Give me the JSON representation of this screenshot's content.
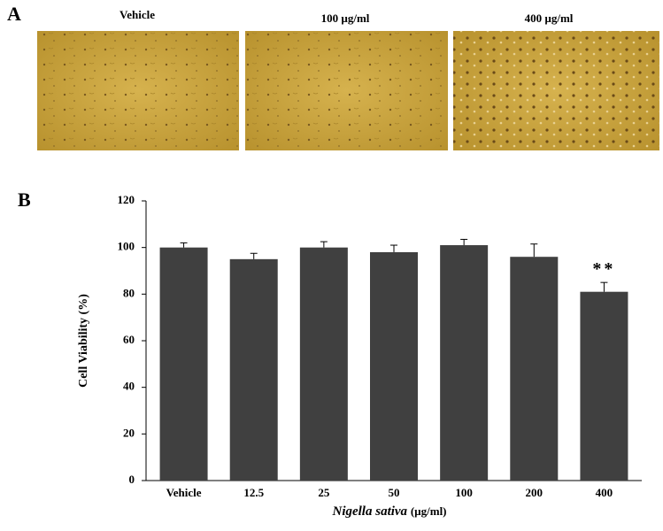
{
  "panel_a": {
    "label": "A",
    "captions": [
      "Vehicle",
      "100 µg/ml",
      "400 µg/ml"
    ]
  },
  "chart_data": {
    "type": "bar",
    "panel_label": "B",
    "y_label": "Cell Viability (%)",
    "x_label": {
      "italic": "Nigella sativa",
      "unit": "(µg/ml)"
    },
    "categories": [
      "Vehicle",
      "12.5",
      "25",
      "50",
      "100",
      "200",
      "400"
    ],
    "values": [
      100,
      95,
      100,
      98,
      101,
      96,
      81
    ],
    "errors": [
      2,
      2.5,
      2.5,
      3,
      2.5,
      5.5,
      4
    ],
    "color": "#404040",
    "ylim": [
      0,
      120
    ],
    "yticks": [
      0,
      20,
      40,
      60,
      80,
      100,
      120
    ],
    "annotations": [
      {
        "category": 6,
        "text": "**"
      }
    ]
  }
}
